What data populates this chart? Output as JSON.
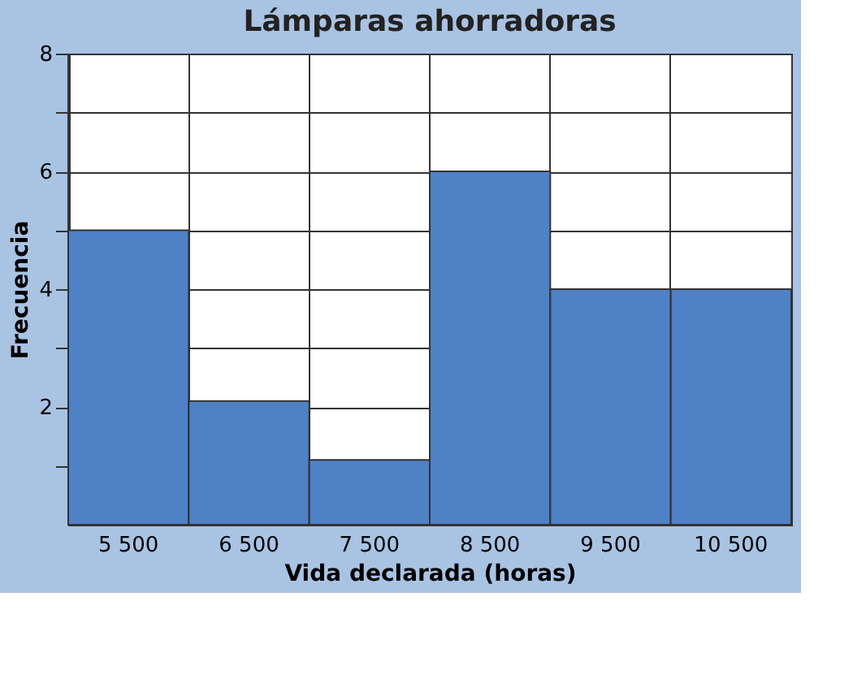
{
  "chart_data": {
    "type": "bar",
    "title": "Lámparas ahorradoras",
    "xlabel": "Vida declarada (horas)",
    "ylabel": "Frecuencia",
    "categories": [
      "5 500",
      "6 500",
      "7 500",
      "8 500",
      "9 500",
      "10 500"
    ],
    "values": [
      5,
      2.1,
      1.1,
      6,
      4,
      4
    ],
    "color": "#4f81c7",
    "ylim": [
      0,
      8
    ],
    "yticks": [
      {
        "value": 1,
        "label": null
      },
      2,
      {
        "value": 3,
        "label": null
      },
      4,
      {
        "value": 5,
        "label": null
      },
      6,
      {
        "value": 7,
        "label": null
      },
      8
    ],
    "grid": true
  }
}
